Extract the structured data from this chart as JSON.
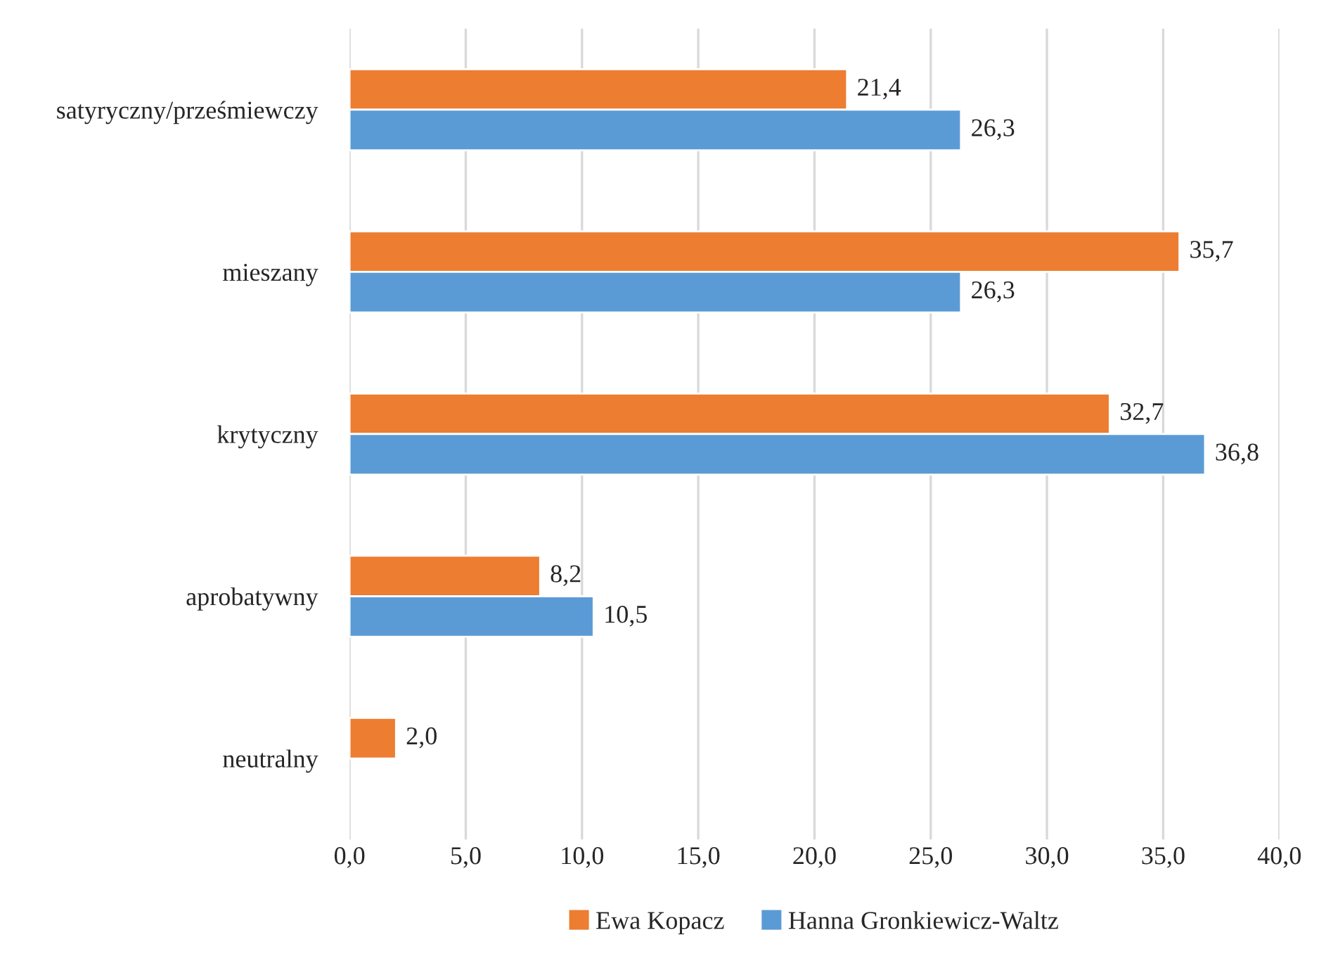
{
  "chart_data": {
    "type": "bar",
    "orientation": "horizontal",
    "categories": [
      "satyryczny/prześmiewczy",
      "mieszany",
      "krytyczny",
      "aprobatywny",
      "neutralny"
    ],
    "series": [
      {
        "name": "Ewa Kopacz",
        "color": "#ed7d31",
        "values": [
          21.4,
          35.7,
          32.7,
          8.2,
          2.0
        ],
        "value_labels": [
          "21,4",
          "35,7",
          "32,7",
          "8,2",
          "2,0"
        ]
      },
      {
        "name": "Hanna Gronkiewicz-Waltz",
        "color": "#5b9bd5",
        "values": [
          26.3,
          26.3,
          36.8,
          10.5,
          null
        ],
        "value_labels": [
          "26,3",
          "26,3",
          "36,8",
          "10,5",
          null
        ]
      }
    ],
    "xlim": [
      0,
      40
    ],
    "xticks": [
      {
        "value": 0,
        "label": "0,0"
      },
      {
        "value": 5,
        "label": "5,0"
      },
      {
        "value": 10,
        "label": "10,0"
      },
      {
        "value": 15,
        "label": "15,0"
      },
      {
        "value": 20,
        "label": "20,0"
      },
      {
        "value": 25,
        "label": "25,0"
      },
      {
        "value": 30,
        "label": "30,0"
      },
      {
        "value": 35,
        "label": "35,0"
      },
      {
        "value": 40,
        "label": "40,0"
      }
    ],
    "grid": "x",
    "legend": "bottom"
  }
}
